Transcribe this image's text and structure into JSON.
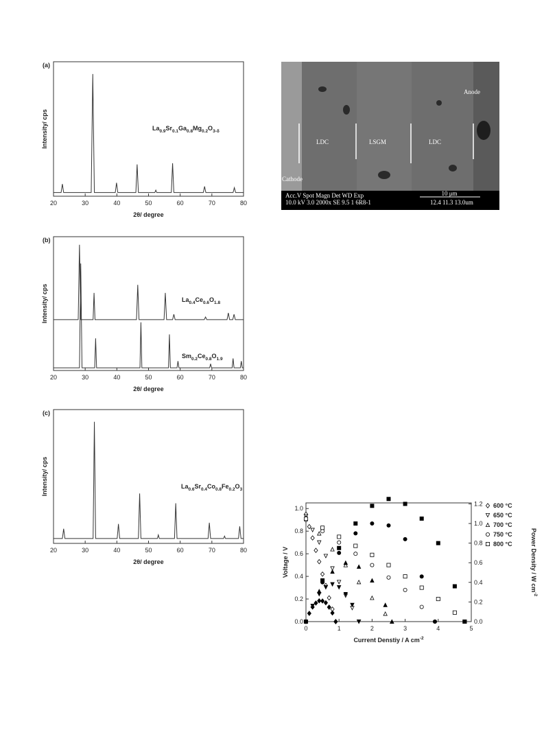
{
  "chart_data": [
    {
      "type": "line",
      "panel": "(a)",
      "xlabel": "2θ/ degree",
      "ylabel": "Intensity/ cps",
      "xlim": [
        20,
        80
      ],
      "xticks": [
        20,
        30,
        40,
        50,
        60,
        70,
        80
      ],
      "ylim": [
        0,
        110
      ],
      "color": "#333333",
      "series": [
        {
          "label_parts": [
            "La",
            "0.9",
            "Sr",
            "0.1",
            "Ga",
            "0.8",
            "Mg",
            "0.2",
            "O",
            "3-δ"
          ],
          "x": [
            20,
            22.4,
            22.8,
            23.2,
            31.9,
            32.4,
            32.9,
            39.5,
            39.9,
            40.3,
            46,
            46.4,
            46.8,
            52,
            52.3,
            52.6,
            57.2,
            57.6,
            58,
            67.3,
            67.7,
            68.1,
            76.7,
            77.1,
            77.5,
            80
          ],
          "values": [
            3,
            3,
            10,
            3,
            3,
            100,
            3,
            3,
            11,
            3,
            3,
            26,
            3,
            3,
            5,
            3,
            3,
            27,
            3,
            3,
            8,
            3,
            3,
            7,
            3,
            3
          ]
        }
      ]
    },
    {
      "type": "line",
      "panel": "(b)",
      "xlabel": "2θ/ degree",
      "ylabel": "Intensity/ cps",
      "xlim": [
        20,
        80
      ],
      "xticks": [
        20,
        30,
        40,
        50,
        60,
        70,
        80
      ],
      "ylim": [
        0,
        100
      ],
      "color": "#333333",
      "series": [
        {
          "label_parts": [
            "La",
            "0.4",
            "Ce",
            "0.6",
            "O",
            "1.8"
          ],
          "x": [
            20,
            27.8,
            28.2,
            28.6,
            32.5,
            32.8,
            33.1,
            46.2,
            46.6,
            47,
            54.9,
            55.3,
            55.7,
            57.6,
            58,
            58.4,
            67.6,
            68,
            68.4,
            74.8,
            75.2,
            75.6,
            76.6,
            77,
            77.4,
            80
          ],
          "values": [
            38,
            38,
            94,
            38,
            38,
            58,
            38,
            38,
            64,
            38,
            38,
            58,
            38,
            38,
            42,
            38,
            38,
            40,
            38,
            38,
            43,
            38,
            38,
            42,
            38,
            38
          ]
        },
        {
          "label_parts": [
            "Sm",
            "0.2",
            "Ce",
            "0.8",
            "O",
            "1.9"
          ],
          "x": [
            20,
            28.2,
            28.6,
            29,
            33,
            33.3,
            33.6,
            47.3,
            47.6,
            47.9,
            56.3,
            56.6,
            56.9,
            59,
            59.3,
            59.6,
            69.3,
            69.6,
            69.9,
            76.4,
            76.7,
            77,
            79,
            79.3,
            79.6,
            80
          ],
          "values": [
            2,
            2,
            80,
            2,
            2,
            24,
            2,
            2,
            36,
            2,
            2,
            27,
            2,
            2,
            7,
            2,
            2,
            5,
            2,
            2,
            9,
            2,
            2,
            7,
            2,
            2
          ]
        }
      ]
    },
    {
      "type": "line",
      "panel": "(c)",
      "xlabel": "2θ/ degree",
      "ylabel": "Intensity/ cps",
      "xlim": [
        20,
        80
      ],
      "xticks": [
        20,
        30,
        40,
        50,
        60,
        70,
        80
      ],
      "ylim": [
        0,
        110
      ],
      "color": "#333333",
      "series": [
        {
          "label_parts": [
            "La",
            "0.6",
            "Sr",
            "0.4",
            "Co",
            "0.8",
            "Fe",
            "0.2",
            "O",
            "3"
          ],
          "x": [
            20,
            22.8,
            23.2,
            23.6,
            32.5,
            32.9,
            33.3,
            40.1,
            40.5,
            40.9,
            46.8,
            47.2,
            47.6,
            52.8,
            53.1,
            53.4,
            58.2,
            58.6,
            59,
            68.8,
            69.2,
            69.6,
            73.7,
            74,
            74.3,
            78.4,
            78.8,
            79.2,
            80
          ],
          "values": [
            4,
            4,
            12,
            4,
            4,
            100,
            4,
            4,
            16,
            4,
            4,
            41,
            4,
            4,
            7,
            4,
            4,
            33,
            4,
            4,
            17,
            4,
            4,
            6,
            4,
            4,
            14,
            4,
            4
          ]
        }
      ]
    },
    {
      "type": "scatter",
      "xlabel_parts": [
        "Current Denstiy / A cm",
        "-2"
      ],
      "ylabel": "Voltage / V",
      "y2label_parts": [
        "Power Density / W cm",
        "-2"
      ],
      "xlim": [
        0,
        5
      ],
      "xticks": [
        0,
        1,
        2,
        3,
        4,
        5
      ],
      "ylim": [
        0,
        1.05
      ],
      "yticks": [
        {
          "value": 0,
          "label": "0.0"
        },
        0.2,
        0.4,
        0.6,
        0.8,
        {
          "value": 1,
          "label": "1.0"
        }
      ],
      "y2lim": [
        0,
        1.21
      ],
      "y2ticks": [
        {
          "value": 0,
          "label": "0.0"
        },
        0.2,
        0.4,
        0.6,
        0.8,
        {
          "value": 1,
          "label": "1.0"
        },
        1.2
      ],
      "legend": "upper right",
      "color": "#000000",
      "series": [
        {
          "name": "600 °C",
          "marker": "diamond",
          "x": [
            0,
            0.1,
            0.2,
            0.3,
            0.4,
            0.5,
            0.6,
            0.7,
            0.8,
            0.9
          ],
          "values": [
            0.95,
            0.84,
            0.74,
            0.63,
            0.53,
            0.42,
            0.32,
            0.21,
            0.11,
            0
          ]
        },
        {
          "name": "650 °C",
          "marker": "tri-down",
          "x": [
            0,
            0.2,
            0.4,
            0.6,
            0.8,
            1.0,
            1.2,
            1.4,
            1.6
          ],
          "values": [
            0.93,
            0.81,
            0.7,
            0.58,
            0.47,
            0.35,
            0.23,
            0.12,
            0
          ]
        },
        {
          "name": "700 °C",
          "marker": "tri-up",
          "x": [
            0,
            0.4,
            0.8,
            1.2,
            1.6,
            2.0,
            2.4,
            2.6
          ],
          "values": [
            0.92,
            0.78,
            0.64,
            0.5,
            0.35,
            0.21,
            0.07,
            0
          ]
        },
        {
          "name": "750 °C",
          "marker": "circle",
          "x": [
            0,
            0.5,
            1.0,
            1.5,
            2.0,
            2.5,
            3.0,
            3.5,
            3.9
          ],
          "values": [
            0.9,
            0.8,
            0.7,
            0.6,
            0.5,
            0.39,
            0.28,
            0.13,
            0
          ]
        },
        {
          "name": "800 °C",
          "marker": "square",
          "x": [
            0,
            0.5,
            1.0,
            1.5,
            2.0,
            2.5,
            3.0,
            3.5,
            4.0,
            4.5,
            4.8
          ],
          "values": [
            0.91,
            0.83,
            0.75,
            0.67,
            0.59,
            0.5,
            0.4,
            0.3,
            0.2,
            0.08,
            0
          ]
        },
        {
          "marker": "diamond",
          "filled": true,
          "axis": "y2",
          "x": [
            0,
            0.1,
            0.2,
            0.3,
            0.4,
            0.5,
            0.6,
            0.7,
            0.8,
            0.9
          ],
          "values": [
            0,
            0.084,
            0.148,
            0.189,
            0.212,
            0.21,
            0.192,
            0.147,
            0.088,
            0
          ]
        },
        {
          "marker": "tri-down",
          "filled": true,
          "axis": "y2",
          "x": [
            0,
            0.2,
            0.4,
            0.6,
            0.8,
            1.0,
            1.2,
            1.4,
            1.6
          ],
          "values": [
            0,
            0.16,
            0.28,
            0.35,
            0.38,
            0.35,
            0.28,
            0.17,
            0
          ]
        },
        {
          "marker": "tri-up",
          "filled": true,
          "axis": "y2",
          "x": [
            0,
            0.4,
            0.8,
            1.2,
            1.6,
            2.0,
            2.4,
            2.6
          ],
          "values": [
            0,
            0.31,
            0.51,
            0.6,
            0.56,
            0.42,
            0.17,
            0
          ]
        },
        {
          "marker": "circle",
          "filled": true,
          "axis": "y2",
          "x": [
            0,
            0.5,
            1.0,
            1.5,
            2.0,
            2.5,
            3.0,
            3.5,
            3.9
          ],
          "values": [
            0,
            0.4,
            0.7,
            0.9,
            1.0,
            0.98,
            0.84,
            0.46,
            0
          ]
        },
        {
          "marker": "square",
          "filled": true,
          "axis": "y2",
          "x": [
            0,
            0.5,
            1.0,
            1.5,
            2.0,
            2.5,
            3.0,
            3.5,
            4.0,
            4.5,
            4.8
          ],
          "values": [
            0,
            0.42,
            0.75,
            1.0,
            1.18,
            1.25,
            1.2,
            1.05,
            0.8,
            0.36,
            0
          ]
        }
      ]
    }
  ],
  "micrograph": {
    "labels": [
      "Anode",
      "LDC",
      "LSGM",
      "LDC",
      "Cathode"
    ],
    "info": [
      "Acc.V  Spot Magn    Det  WD  Exp",
      "10.0 kV 3.0  2000x   SE  9.5  1    6R8-1",
      "10 μm",
      "12.4   11.3   13.0um"
    ]
  }
}
